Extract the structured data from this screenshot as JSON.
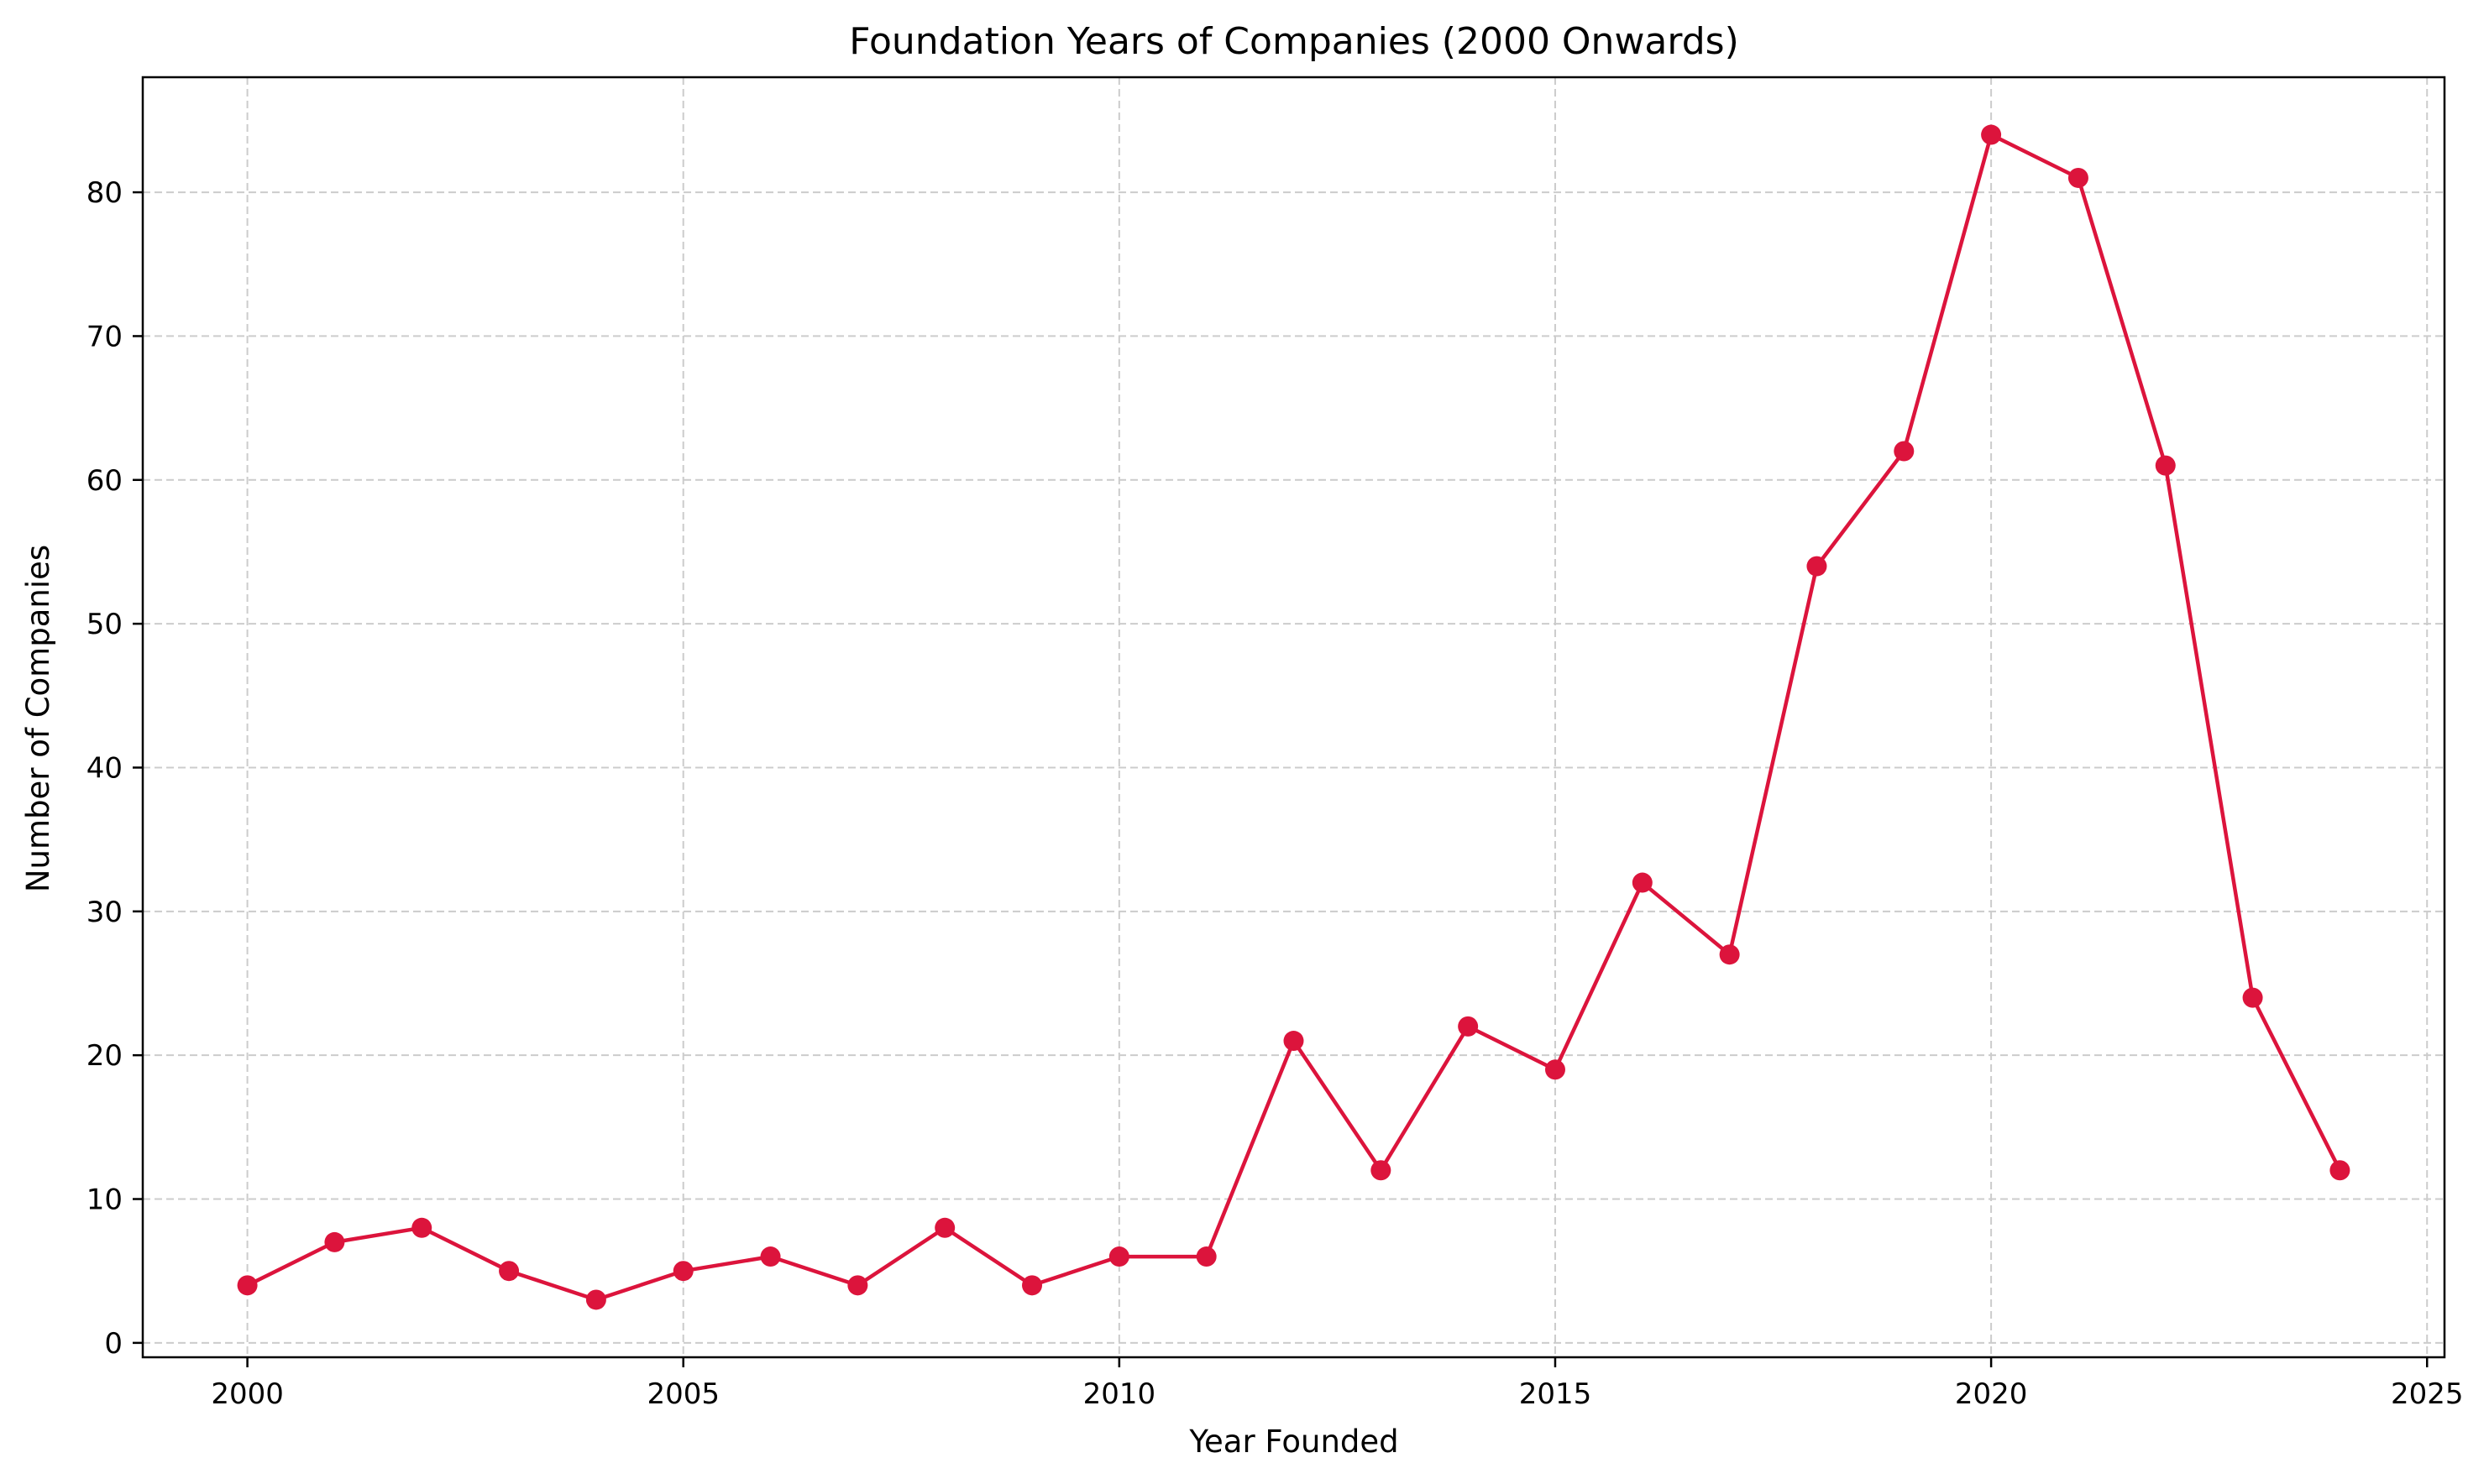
{
  "chart_data": {
    "type": "line",
    "title": "Foundation Years of Companies (2000 Onwards)",
    "xlabel": "Year Founded",
    "ylabel": "Number of Companies",
    "xlim": [
      1998.8,
      2025.2
    ],
    "ylim": [
      -1,
      88
    ],
    "x_ticks": [
      2000,
      2005,
      2010,
      2015,
      2020,
      2025
    ],
    "y_ticks": [
      0,
      10,
      20,
      30,
      40,
      50,
      60,
      70,
      80
    ],
    "grid": true,
    "grid_style": "dashed",
    "series": [
      {
        "color": "#dc143c",
        "marker": "circle",
        "x": [
          2000,
          2001,
          2002,
          2003,
          2004,
          2005,
          2006,
          2007,
          2008,
          2009,
          2010,
          2011,
          2012,
          2013,
          2014,
          2015,
          2016,
          2017,
          2018,
          2019,
          2020,
          2021,
          2022,
          2023,
          2024
        ],
        "values": [
          4,
          7,
          8,
          5,
          3,
          5,
          6,
          4,
          8,
          4,
          6,
          6,
          21,
          12,
          22,
          19,
          32,
          27,
          54,
          62,
          84,
          81,
          61,
          24,
          12
        ]
      }
    ]
  }
}
